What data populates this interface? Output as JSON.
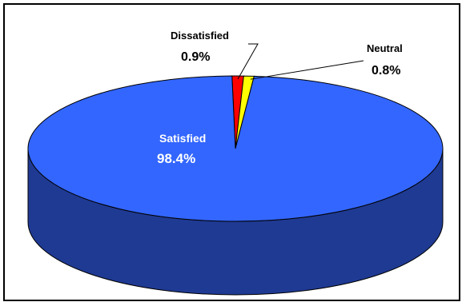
{
  "chart_data": {
    "type": "pie",
    "title": "",
    "slices": [
      {
        "label": "Satisfied",
        "value": 98.4,
        "value_label": "98.4%",
        "color": "#3366ff"
      },
      {
        "label": "Dissatisfied",
        "value": 0.9,
        "value_label": "0.9%",
        "color": "#ff0000"
      },
      {
        "label": "Neutral",
        "value": 0.8,
        "value_label": "0.8%",
        "color": "#ffff00"
      }
    ],
    "style": "3d",
    "legend": "none",
    "colors": {
      "side": "#1f3a93",
      "outline": "#000000",
      "inside_label": "#ffffff",
      "outside_label": "#000000",
      "frame": "#000000"
    }
  }
}
